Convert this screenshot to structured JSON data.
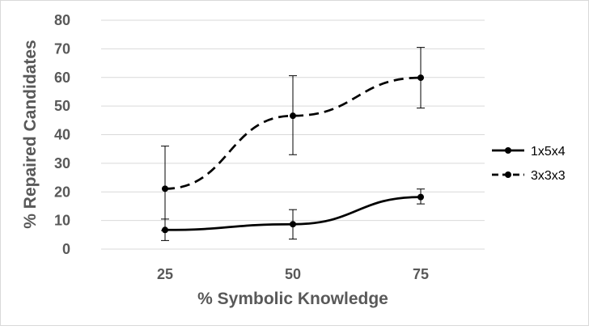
{
  "chart_data": {
    "type": "line",
    "xlabel": "% Symbolic Knowledge",
    "ylabel": "% Repaired Candidates",
    "categories": [
      "25",
      "50",
      "75"
    ],
    "ylim": [
      0,
      80
    ],
    "yticks": [
      "0",
      "10",
      "20",
      "30",
      "40",
      "50",
      "60",
      "70",
      "80"
    ],
    "grid": "horizontal",
    "legend_position": "right",
    "series": [
      {
        "name": "1x5x4",
        "style": "solid",
        "color": "#000000",
        "values": [
          6.7,
          8.7,
          18.2
        ],
        "error_low": [
          3.0,
          3.5,
          15.8
        ],
        "error_high": [
          10.5,
          13.8,
          21.0
        ]
      },
      {
        "name": "3x3x3",
        "style": "dashed",
        "color": "#000000",
        "values": [
          21.1,
          46.6,
          59.9
        ],
        "error_low": [
          6.5,
          33.0,
          49.3
        ],
        "error_high": [
          36.0,
          60.6,
          70.5
        ]
      }
    ]
  }
}
